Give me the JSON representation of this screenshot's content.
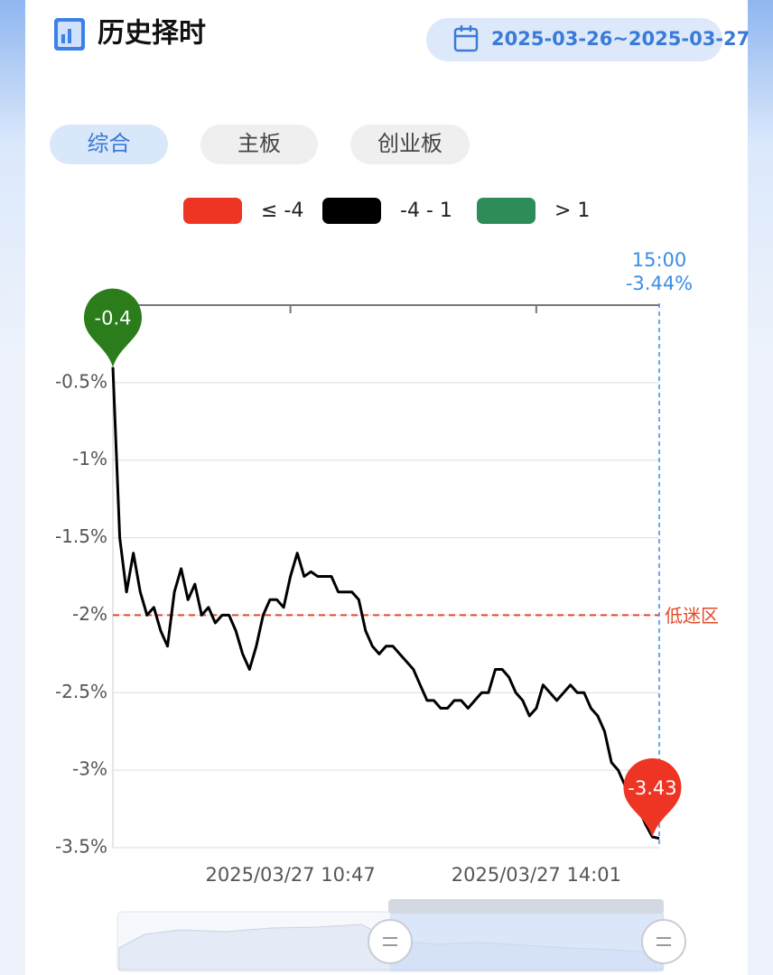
{
  "header": {
    "title": "历史择时",
    "date_range": "2025-03-26~2025-03-27"
  },
  "tabs": [
    "综合",
    "主板",
    "创业板"
  ],
  "chart_data": {
    "type": "line",
    "legend": [
      {
        "label": "≤ -4",
        "color": "#ee3524"
      },
      {
        "label": "-4 - 1",
        "color": "#000000"
      },
      {
        "label": "> 1",
        "color": "#2e8b5a"
      }
    ],
    "categories": [
      null,
      null,
      null,
      null,
      null,
      null,
      null,
      null,
      null,
      null,
      null,
      null,
      null,
      null,
      null,
      null,
      null,
      null,
      null,
      null,
      null,
      null,
      null,
      null,
      null,
      null,
      "2025/03/27 10:47",
      null,
      null,
      null,
      null,
      null,
      null,
      null,
      null,
      null,
      null,
      null,
      null,
      null,
      null,
      null,
      null,
      null,
      null,
      null,
      null,
      null,
      null,
      null,
      null,
      null,
      null,
      null,
      null,
      null,
      null,
      null,
      null,
      null,
      null,
      null,
      "2025/03/27 14:01",
      null,
      null,
      null,
      null,
      null,
      null,
      null,
      null,
      null,
      null,
      null,
      null,
      null,
      null,
      null,
      null,
      null,
      null
    ],
    "series": [
      {
        "color": "#000000",
        "values": [
          -0.4,
          -1.5,
          -1.85,
          -1.6,
          -1.85,
          -2.0,
          -1.95,
          -2.1,
          -2.2,
          -1.85,
          -1.7,
          -1.9,
          -1.8,
          -2.0,
          -1.95,
          -2.05,
          -2.0,
          -2.0,
          -2.1,
          -2.25,
          -2.35,
          -2.2,
          -2.0,
          -1.9,
          -1.9,
          -1.95,
          -1.75,
          -1.6,
          -1.75,
          -1.72,
          -1.75,
          -1.75,
          -1.75,
          -1.85,
          -1.85,
          -1.85,
          -1.9,
          -2.1,
          -2.2,
          -2.25,
          -2.2,
          -2.2,
          -2.25,
          -2.3,
          -2.35,
          -2.45,
          -2.55,
          -2.55,
          -2.6,
          -2.6,
          -2.55,
          -2.55,
          -2.6,
          -2.55,
          -2.5,
          -2.5,
          -2.35,
          -2.35,
          -2.4,
          -2.5,
          -2.55,
          -2.65,
          -2.6,
          -2.45,
          -2.5,
          -2.55,
          -2.5,
          -2.45,
          -2.5,
          -2.5,
          -2.6,
          -2.65,
          -2.75,
          -2.95,
          -3.0,
          -3.1,
          -3.2,
          -3.25,
          -3.35,
          -3.43,
          -3.44
        ]
      }
    ],
    "markers": [
      {
        "index": 0,
        "color": "#2b7d1b"
      },
      {
        "index": 79,
        "color": "#ee3524"
      }
    ],
    "threshold": {
      "value": -2,
      "label": "低迷区",
      "color": "#e04a2a"
    },
    "cursor": {
      "time": "15:00",
      "label": "-3.44%",
      "color": "#3a8ee6"
    },
    "ylim": [
      -3.5,
      0
    ],
    "yticks": [
      0,
      {
        "value": -0.5,
        "label": "-0.5%"
      },
      {
        "value": -1,
        "label": "-1%"
      },
      {
        "value": -1.5,
        "label": "-1.5%"
      },
      {
        "value": -2,
        "label": "-2%"
      },
      {
        "value": -2.5,
        "label": "-2.5%"
      },
      {
        "value": -3,
        "label": "-3%"
      },
      {
        "value": -3.5,
        "label": "-3.5%"
      }
    ],
    "grid": true
  }
}
